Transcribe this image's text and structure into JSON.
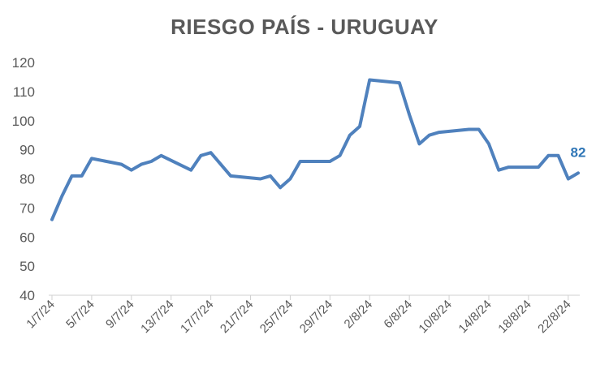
{
  "chart_data": {
    "type": "line",
    "title": "RIESGO PAÍS - URUGUAY",
    "xlabel": "",
    "ylabel": "",
    "ylim": [
      40,
      120
    ],
    "yticks": [
      40,
      50,
      60,
      70,
      80,
      90,
      100,
      110,
      120
    ],
    "grid": false,
    "legend": "none",
    "color": "#4f81bd",
    "x_tick_labels": [
      "1/7/24",
      "5/7/24",
      "9/7/24",
      "13/7/24",
      "17/7/24",
      "21/7/24",
      "25/7/24",
      "29/7/24",
      "2/8/24",
      "6/8/24",
      "10/8/24",
      "14/8/24",
      "18/8/24",
      "22/8/24"
    ],
    "x": [
      "1/7/24",
      "2/7/24",
      "3/7/24",
      "4/7/24",
      "5/7/24",
      "8/7/24",
      "9/7/24",
      "10/7/24",
      "11/7/24",
      "12/7/24",
      "15/7/24",
      "16/7/24",
      "17/7/24",
      "19/7/24",
      "22/7/24",
      "23/7/24",
      "24/7/24",
      "25/7/24",
      "26/7/24",
      "29/7/24",
      "30/7/24",
      "31/7/24",
      "1/8/24",
      "2/8/24",
      "5/8/24",
      "6/8/24",
      "7/8/24",
      "8/8/24",
      "9/8/24",
      "12/8/24",
      "13/8/24",
      "14/8/24",
      "15/8/24",
      "16/8/24",
      "19/8/24",
      "20/8/24",
      "21/8/24",
      "22/8/24",
      "23/8/24"
    ],
    "values": [
      66,
      74,
      81,
      81,
      87,
      85,
      83,
      85,
      86,
      88,
      83,
      88,
      89,
      81,
      80,
      81,
      77,
      80,
      86,
      86,
      88,
      95,
      98,
      114,
      113,
      102,
      92,
      95,
      96,
      97,
      97,
      92,
      83,
      84,
      84,
      88,
      88,
      80,
      82
    ],
    "data_labels": [
      {
        "index": 38,
        "text": "82"
      }
    ]
  }
}
